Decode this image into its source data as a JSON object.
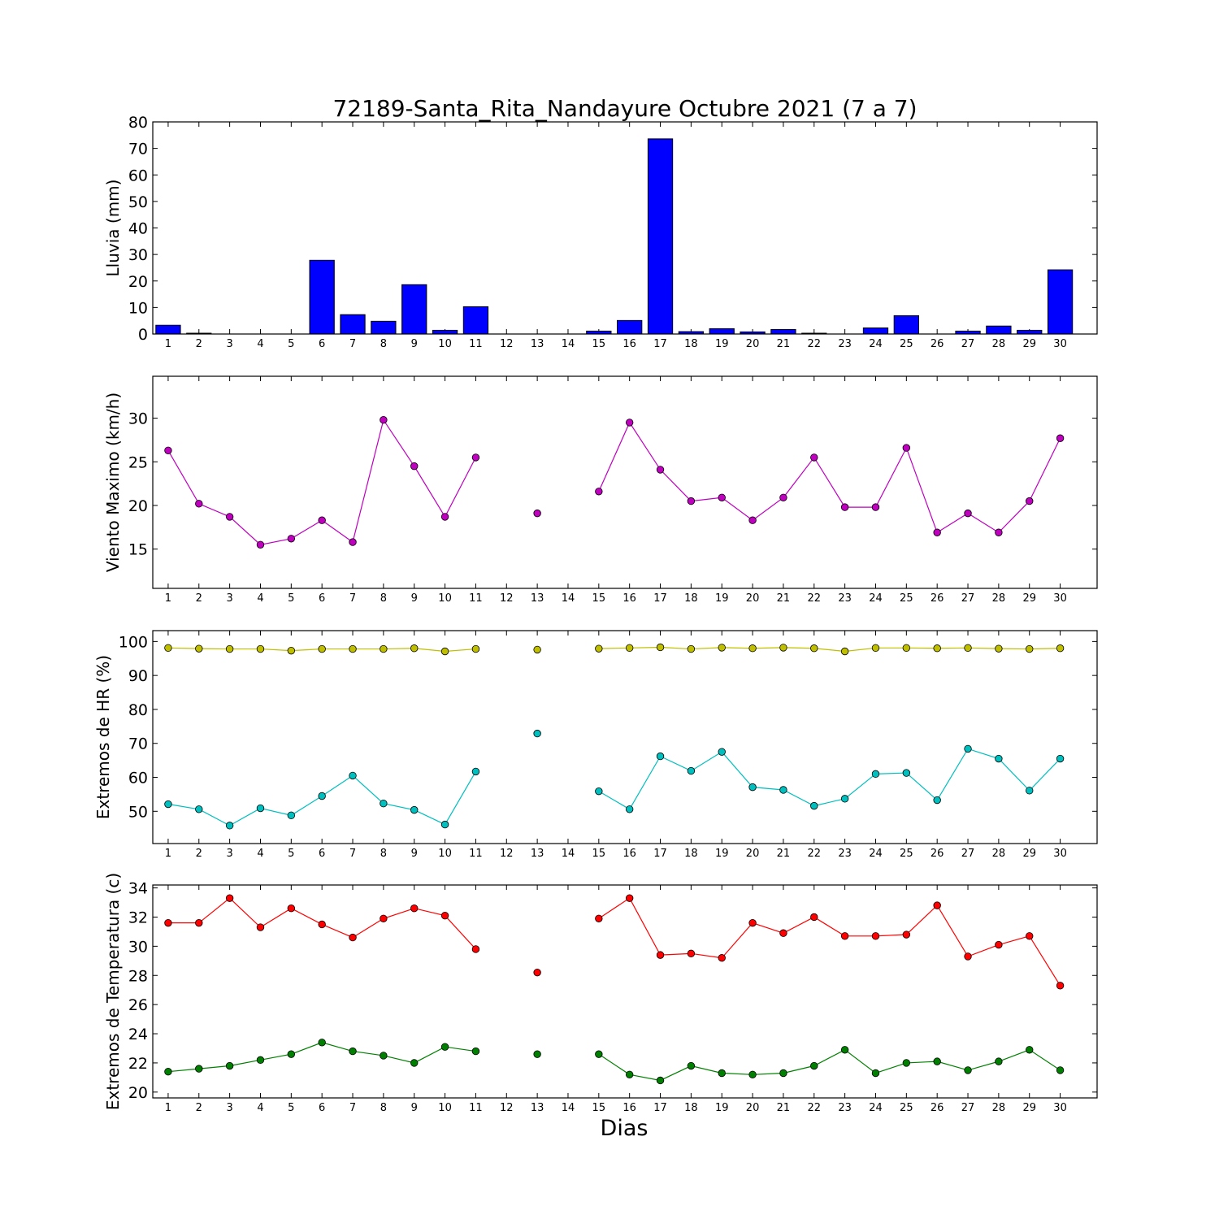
{
  "title": "72189-Santa_Rita_Nandayure Octubre 2021  (7 a 7)",
  "xlabel": "Dias",
  "chart_data": [
    {
      "type": "bar",
      "ylabel": "Lluvia (mm)",
      "categories": [
        "1",
        "2",
        "3",
        "4",
        "5",
        "6",
        "7",
        "8",
        "9",
        "10",
        "11",
        "12",
        "13",
        "14",
        "15",
        "16",
        "17",
        "18",
        "19",
        "20",
        "21",
        "22",
        "23",
        "24",
        "25",
        "26",
        "27",
        "28",
        "29",
        "30"
      ],
      "ylim": [
        0,
        80
      ],
      "yticks": [
        0,
        10,
        20,
        30,
        40,
        50,
        60,
        70,
        80
      ],
      "series": [
        {
          "color": "#0000ff",
          "values": [
            3.3,
            0.3,
            0,
            0,
            0,
            27.8,
            7.3,
            4.8,
            18.6,
            1.4,
            10.3,
            0,
            0,
            0,
            1.1,
            5.1,
            73.6,
            0.9,
            2.0,
            0.8,
            1.7,
            0.3,
            0,
            2.3,
            6.9,
            0,
            1.1,
            3.0,
            1.4,
            24.2
          ]
        }
      ]
    },
    {
      "type": "line",
      "ylabel": "Viento Maximo (km/h)",
      "x": [
        1,
        2,
        3,
        4,
        5,
        6,
        7,
        8,
        9,
        10,
        11,
        12,
        13,
        14,
        15,
        16,
        17,
        18,
        19,
        20,
        21,
        22,
        23,
        24,
        25,
        26,
        27,
        28,
        29,
        30
      ],
      "ylim": [
        10.5,
        34.8
      ],
      "yticks": [
        15,
        20,
        25,
        30
      ],
      "series": [
        {
          "color": "#bf00bf",
          "values": [
            26.3,
            20.2,
            18.7,
            15.5,
            16.2,
            18.3,
            15.8,
            29.8,
            24.5,
            18.7,
            25.5,
            null,
            19.1,
            null,
            21.6,
            29.5,
            24.1,
            20.5,
            20.9,
            18.3,
            20.9,
            25.5,
            19.8,
            19.8,
            26.6,
            16.9,
            19.1,
            16.9,
            20.5,
            27.7
          ]
        }
      ]
    },
    {
      "type": "line",
      "ylabel": "Extremos de HR (%)",
      "x": [
        1,
        2,
        3,
        4,
        5,
        6,
        7,
        8,
        9,
        10,
        11,
        12,
        13,
        14,
        15,
        16,
        17,
        18,
        19,
        20,
        21,
        22,
        23,
        24,
        25,
        26,
        27,
        28,
        29,
        30
      ],
      "ylim": [
        40.5,
        103.2
      ],
      "yticks": [
        50,
        60,
        70,
        80,
        90,
        100
      ],
      "series": [
        {
          "color": "#bfbf00",
          "values": [
            98.1,
            97.9,
            97.8,
            97.8,
            97.3,
            97.8,
            97.8,
            97.8,
            98.0,
            97.1,
            97.8,
            null,
            97.6,
            null,
            97.9,
            98.1,
            98.3,
            97.8,
            98.2,
            98.0,
            98.2,
            98.0,
            97.1,
            98.1,
            98.1,
            98.0,
            98.1,
            97.9,
            97.8,
            98.0
          ]
        },
        {
          "color": "#00bfbf",
          "values": [
            52.1,
            50.6,
            45.8,
            50.9,
            48.8,
            54.5,
            60.5,
            52.3,
            50.4,
            46.1,
            61.7,
            null,
            72.9,
            null,
            55.9,
            50.6,
            66.2,
            61.9,
            67.5,
            57.1,
            56.3,
            51.6,
            53.7,
            61.0,
            61.3,
            53.3,
            68.4,
            65.5,
            56.1,
            65.5
          ]
        }
      ]
    },
    {
      "type": "line",
      "ylabel": "Extremos de Temperatura (c)",
      "x": [
        1,
        2,
        3,
        4,
        5,
        6,
        7,
        8,
        9,
        10,
        11,
        12,
        13,
        14,
        15,
        16,
        17,
        18,
        19,
        20,
        21,
        22,
        23,
        24,
        25,
        26,
        27,
        28,
        29,
        30
      ],
      "ylim": [
        19.6,
        34.2
      ],
      "yticks": [
        20,
        22,
        24,
        26,
        28,
        30,
        32,
        34
      ],
      "series": [
        {
          "color": "#ff0000",
          "values": [
            31.6,
            31.6,
            33.3,
            31.3,
            32.6,
            31.5,
            30.6,
            31.9,
            32.6,
            32.1,
            29.8,
            null,
            28.2,
            null,
            31.9,
            33.3,
            29.4,
            29.5,
            29.2,
            31.6,
            30.9,
            32.0,
            30.7,
            30.7,
            30.8,
            32.8,
            29.3,
            30.1,
            30.7,
            27.3
          ]
        },
        {
          "color": "#008000",
          "values": [
            21.4,
            21.6,
            21.8,
            22.2,
            22.6,
            23.4,
            22.8,
            22.5,
            22.0,
            23.1,
            22.8,
            null,
            22.6,
            null,
            22.6,
            21.2,
            20.8,
            21.8,
            21.3,
            21.2,
            21.3,
            21.8,
            22.9,
            21.3,
            22.0,
            22.1,
            21.5,
            22.1,
            22.9,
            21.5
          ]
        }
      ]
    }
  ]
}
